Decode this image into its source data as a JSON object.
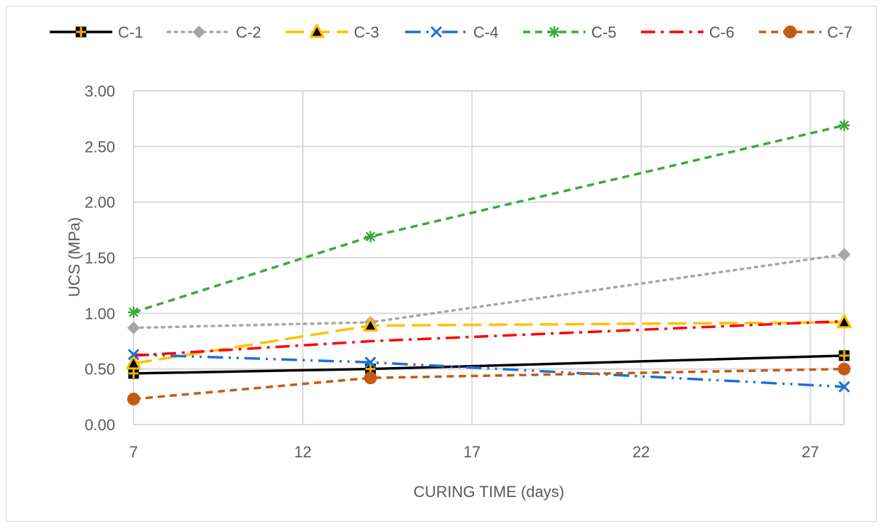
{
  "chart_data": {
    "type": "line",
    "xlabel": "CURING TIME (days)",
    "ylabel": "UCS (MPa)",
    "xlim": [
      7,
      28
    ],
    "ylim": [
      0,
      3
    ],
    "xticks": [
      7,
      12,
      17,
      22,
      27
    ],
    "yticks": [
      "0.00",
      "0.50",
      "1.00",
      "1.50",
      "2.00",
      "2.50",
      "3.00"
    ],
    "grid": true,
    "legend_position": "top",
    "x": [
      7,
      14,
      28
    ],
    "series": [
      {
        "name": "C-1",
        "values": [
          0.46,
          0.5,
          0.62
        ],
        "color": "#000000",
        "dash": "solid",
        "marker": "square-cross",
        "marker_color": "#f2b300"
      },
      {
        "name": "C-2",
        "values": [
          0.87,
          0.92,
          1.53
        ],
        "color": "#a6a6a6",
        "dash": "dot",
        "marker": "diamond",
        "marker_color": "#a6a6a6"
      },
      {
        "name": "C-3",
        "values": [
          0.55,
          0.89,
          0.92
        ],
        "color": "#ffc000",
        "dash": "longdash",
        "marker": "triangle",
        "marker_color": "#ffc000"
      },
      {
        "name": "C-4",
        "values": [
          0.63,
          0.56,
          0.34
        ],
        "color": "#1f6fd1",
        "dash": "dashdotdot",
        "marker": "x",
        "marker_color": "#1f6fd1"
      },
      {
        "name": "C-5",
        "values": [
          1.01,
          1.69,
          2.69
        ],
        "color": "#3aaa35",
        "dash": "dash",
        "marker": "star",
        "marker_color": "#3aaa35"
      },
      {
        "name": "C-6",
        "values": [
          0.62,
          0.75,
          0.93
        ],
        "color": "#ff0000",
        "dash": "dashdot",
        "marker": "none",
        "marker_color": "#ff0000"
      },
      {
        "name": "C-7",
        "values": [
          0.23,
          0.42,
          0.5
        ],
        "color": "#c55a11",
        "dash": "dash",
        "marker": "circle",
        "marker_color": "#c55a11"
      }
    ]
  }
}
